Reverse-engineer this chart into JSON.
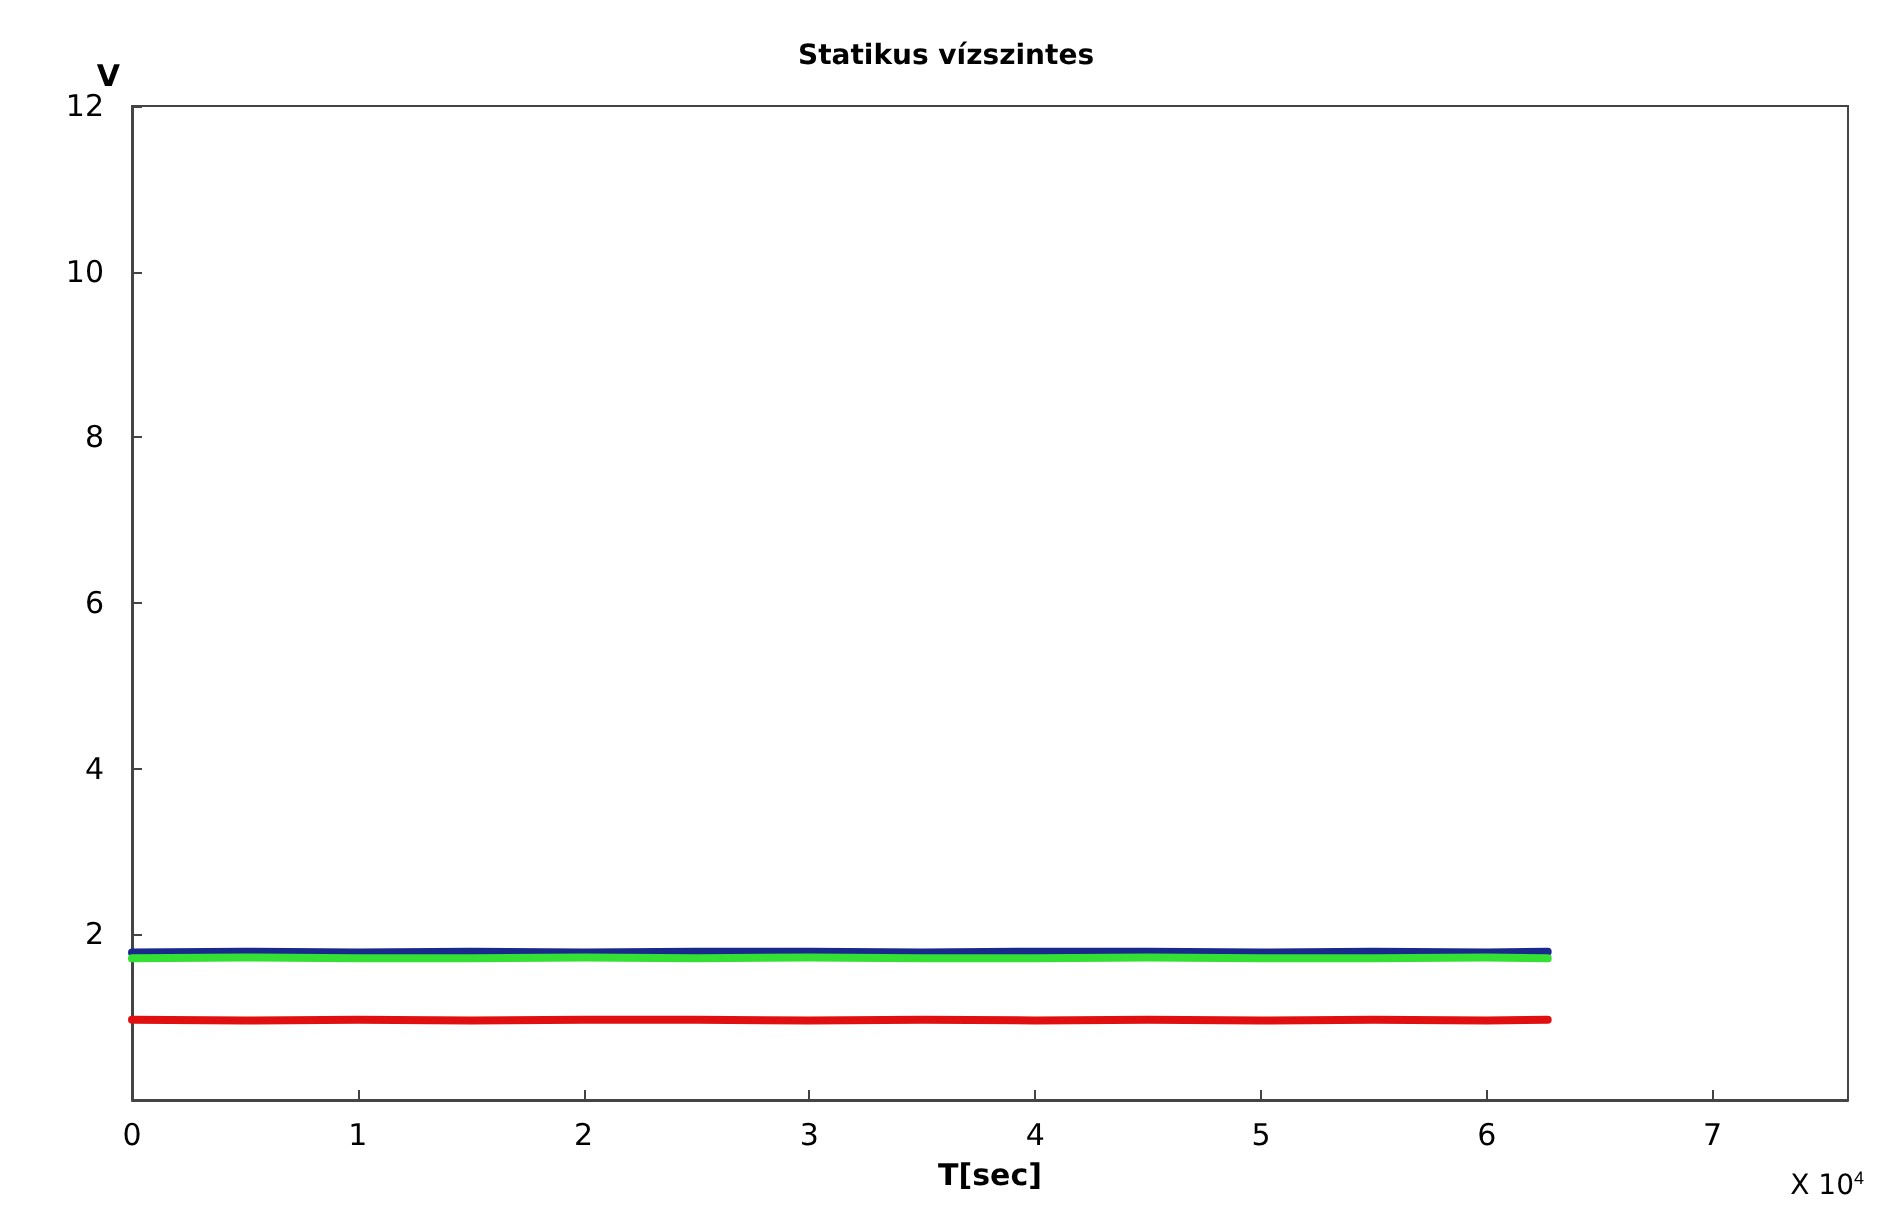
{
  "chart_data": {
    "type": "line",
    "title": "Statikus vízszintes",
    "xlabel": "T[sec]",
    "ylabel": "V",
    "annotations": [
      "X 10$^{4}$"
    ],
    "x": [
      0,
      0.5,
      1,
      1.5,
      2,
      2.5,
      3,
      3.5,
      4,
      4.5,
      5,
      5.5,
      6,
      6.27
    ],
    "series": [
      {
        "color": "#1a2a8c",
        "values": [
          1.78,
          1.79,
          1.78,
          1.79,
          1.78,
          1.79,
          1.79,
          1.78,
          1.79,
          1.79,
          1.78,
          1.79,
          1.78,
          1.79
        ]
      },
      {
        "color": "#33e033",
        "values": [
          1.71,
          1.72,
          1.71,
          1.71,
          1.72,
          1.71,
          1.72,
          1.71,
          1.71,
          1.72,
          1.71,
          1.71,
          1.72,
          1.71
        ]
      },
      {
        "color": "#e01010",
        "values": [
          0.97,
          0.96,
          0.97,
          0.96,
          0.97,
          0.97,
          0.96,
          0.97,
          0.96,
          0.97,
          0.96,
          0.97,
          0.96,
          0.97
        ]
      }
    ],
    "xlim": [
      0,
      7.6
    ],
    "xticks": [
      0,
      1,
      2,
      3,
      4,
      5,
      6,
      7
    ],
    "ylim": [
      0,
      12
    ],
    "yticks": [
      {
        "value": 0,
        "label": null
      },
      2,
      4,
      6,
      8,
      10,
      12
    ],
    "grid": false,
    "marker": "none",
    "line_style": "solid"
  }
}
